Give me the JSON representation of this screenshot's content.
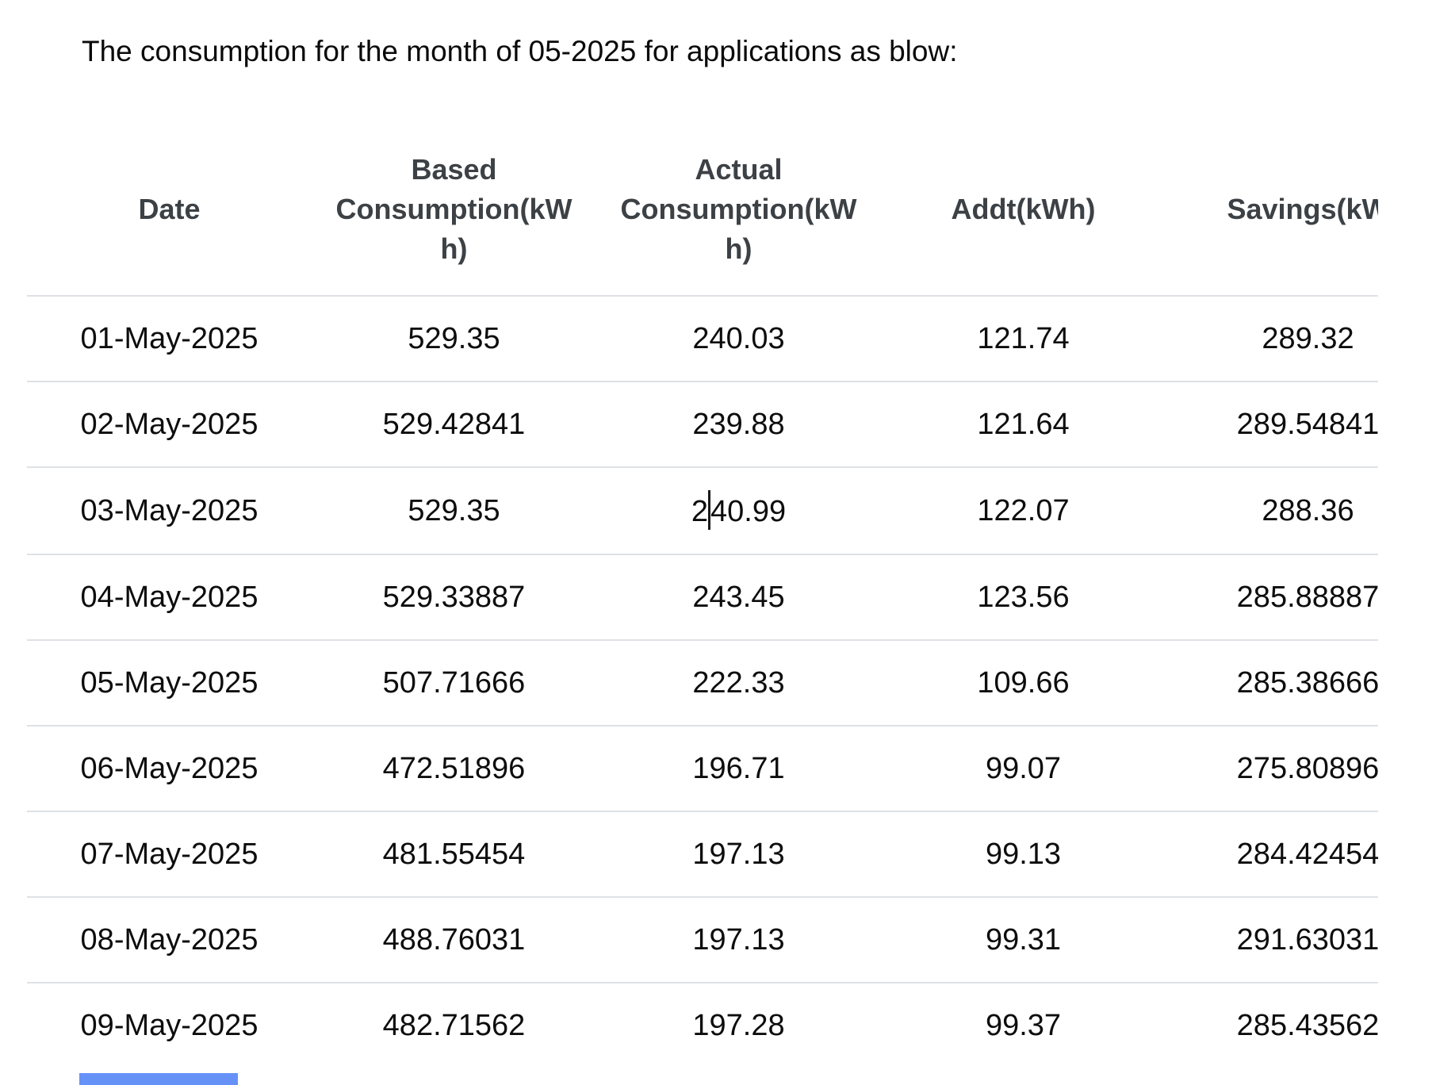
{
  "header": {
    "title": "The consumption for the month of 05-2025 for applications as blow:"
  },
  "colors": {
    "row_border": "#dee2e6",
    "header_text": "#3c4146",
    "body_text": "#0d0d0d",
    "selection_highlight": "rgba(59,115,246,0.78)"
  },
  "table": {
    "columns": [
      "Date",
      "Based Consumption(kWh)",
      "Actual Consumption(kWh)",
      "Addt(kWh)",
      "Savings(kW"
    ],
    "rows": [
      [
        "01-May-2025",
        "529.35",
        "240.03",
        "121.74",
        "289.32"
      ],
      [
        "02-May-2025",
        "529.42841",
        "239.88",
        "121.64",
        "289.54841"
      ],
      [
        "03-May-2025",
        "529.35",
        "240.99",
        "122.07",
        "288.36"
      ],
      [
        "04-May-2025",
        "529.33887",
        "243.45",
        "123.56",
        "285.88887"
      ],
      [
        "05-May-2025",
        "507.71666",
        "222.33",
        "109.66",
        "285.38666"
      ],
      [
        "06-May-2025",
        "472.51896",
        "196.71",
        "99.07",
        "275.80896"
      ],
      [
        "07-May-2025",
        "481.55454",
        "197.13",
        "99.13",
        "284.42454"
      ],
      [
        "08-May-2025",
        "488.76031",
        "197.13",
        "99.31",
        "291.63031"
      ],
      [
        "09-May-2025",
        "482.71562",
        "197.28",
        "99.37",
        "285.43562"
      ]
    ],
    "caret": {
      "row": 2,
      "col": 2,
      "after_chars": 1
    },
    "selection_strip": {
      "row": 8,
      "col": 0
    }
  }
}
